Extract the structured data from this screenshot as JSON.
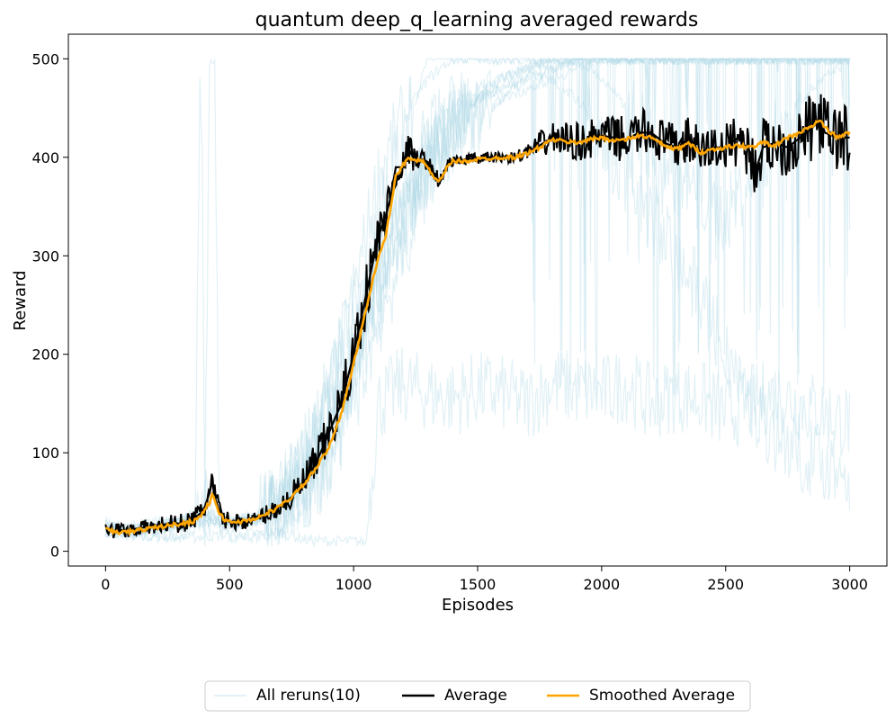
{
  "chart_data": {
    "type": "line",
    "title": "quantum deep_q_learning averaged rewards",
    "xlabel": "Episodes",
    "ylabel": "Reward",
    "xlim": [
      -150,
      3150
    ],
    "ylim": [
      -15,
      525
    ],
    "xticks": [
      0,
      500,
      1000,
      1500,
      2000,
      2500,
      3000
    ],
    "yticks": [
      0,
      100,
      200,
      300,
      400,
      500
    ],
    "grid": false,
    "legend_position": "bottom-center",
    "series": [
      {
        "name": "All reruns(10)",
        "color": "#add8e6",
        "runs": [
          {
            "x": [
              0,
              100,
              200,
              300,
              360,
              380,
              390,
              400,
              420,
              440,
              460,
              500,
              600,
              700,
              800,
              900,
              1000,
              1100,
              1200,
              1300,
              1400,
              1500,
              1600,
              1700,
              1800,
              1900,
              2000,
              2100,
              2200,
              2300,
              2400,
              2500,
              2600,
              2700,
              2800,
              2900,
              3000
            ],
            "y": [
              20,
              15,
              14,
              15,
              16,
              480,
              420,
              30,
              500,
              500,
              20,
              15,
              14,
              18,
              40,
              80,
              180,
              330,
              420,
              500,
              500,
              500,
              500,
              500,
              500,
              500,
              500,
              500,
              500,
              500,
              500,
              500,
              500,
              500,
              500,
              500,
              500
            ]
          },
          {
            "x": [
              0,
              100,
              200,
              300,
              400,
              500,
              600,
              700,
              800,
              900,
              1000,
              1050,
              1100,
              1200,
              1300,
              1400,
              1500,
              1600,
              1700,
              1800,
              1900,
              2000,
              2100,
              2200,
              2300,
              2400,
              2500,
              2600,
              2700,
              2800,
              2900,
              3000
            ],
            "y": [
              22,
              18,
              16,
              14,
              15,
              16,
              18,
              20,
              12,
              10,
              10,
              9,
              150,
              170,
              160,
              155,
              165,
              160,
              150,
              170,
              165,
              160,
              170,
              150,
              160,
              155,
              140,
              150,
              160,
              150,
              140,
              130
            ]
          },
          {
            "x": [
              0,
              100,
              200,
              300,
              400,
              500,
              600,
              700,
              800,
              900,
              1000,
              1100,
              1200,
              1300,
              1400,
              1500,
              1600,
              1700,
              1800,
              1900,
              2000,
              2100,
              2200,
              2300,
              2400,
              2500,
              2600,
              2700,
              2800,
              2900,
              3000
            ],
            "y": [
              25,
              20,
              25,
              30,
              40,
              30,
              35,
              55,
              90,
              160,
              260,
              380,
              440,
              480,
              500,
              500,
              500,
              500,
              490,
              500,
              480,
              450,
              420,
              380,
              360,
              340,
              380,
              420,
              460,
              480,
              500
            ]
          },
          {
            "x": [
              0,
              100,
              200,
              300,
              400,
              500,
              600,
              700,
              800,
              900,
              1000,
              1100,
              1200,
              1300,
              1400,
              1500,
              1600,
              1700,
              1800,
              1900,
              2000,
              2100,
              2200,
              2300,
              2400,
              2500,
              2600,
              2700,
              2800,
              2900,
              3000
            ],
            "y": [
              18,
              16,
              20,
              25,
              30,
              25,
              30,
              50,
              70,
              120,
              200,
              280,
              350,
              400,
              420,
              440,
              460,
              470,
              480,
              490,
              500,
              500,
              500,
              500,
              500,
              500,
              500,
              500,
              500,
              500,
              500
            ]
          },
          {
            "x": [
              0,
              100,
              200,
              300,
              400,
              500,
              600,
              700,
              800,
              900,
              1000,
              1100,
              1200,
              1300,
              1400,
              1500,
              1600,
              1700,
              1800,
              1900,
              2000,
              2100,
              2200,
              2300,
              2400,
              2500,
              2600,
              2700,
              2800,
              2900,
              3000
            ],
            "y": [
              30,
              25,
              30,
              28,
              35,
              30,
              32,
              45,
              60,
              110,
              180,
              250,
              320,
              390,
              430,
              460,
              480,
              490,
              500,
              500,
              500,
              500,
              500,
              500,
              500,
              500,
              500,
              500,
              500,
              500,
              500
            ]
          },
          {
            "x": [
              0,
              100,
              200,
              300,
              400,
              500,
              600,
              700,
              800,
              900,
              1000,
              1100,
              1200,
              1300,
              1400,
              1500,
              1600,
              1700,
              1800,
              1900,
              2000,
              2100,
              2200,
              2300,
              2400,
              2500,
              2600,
              2700,
              2800,
              2900,
              3000
            ],
            "y": [
              20,
              18,
              22,
              25,
              28,
              26,
              30,
              40,
              55,
              90,
              150,
              230,
              300,
              380,
              420,
              440,
              460,
              480,
              490,
              500,
              500,
              500,
              500,
              500,
              500,
              500,
              500,
              500,
              500,
              500,
              500
            ]
          },
          {
            "x": [
              0,
              100,
              200,
              300,
              400,
              500,
              600,
              700,
              800,
              900,
              1000,
              1100,
              1200,
              1300,
              1400,
              1500,
              1600,
              1700,
              1800,
              1900,
              2000,
              2100,
              2200,
              2300,
              2400,
              2500,
              2600,
              2700,
              2800,
              2900,
              3000
            ],
            "y": [
              24,
              22,
              28,
              30,
              45,
              32,
              35,
              60,
              100,
              170,
              240,
              300,
              360,
              420,
              450,
              470,
              480,
              490,
              500,
              500,
              500,
              500,
              500,
              500,
              500,
              500,
              500,
              500,
              500,
              500,
              500
            ]
          },
          {
            "x": [
              0,
              100,
              200,
              300,
              400,
              500,
              600,
              700,
              800,
              900,
              1000,
              1100,
              1200,
              1300,
              1400,
              1500,
              1600,
              1700,
              1800,
              1900,
              2000,
              2100,
              2200,
              2300,
              2400,
              2500,
              2600,
              2700,
              2800,
              2900,
              3000
            ],
            "y": [
              20,
              25,
              24,
              28,
              35,
              28,
              30,
              55,
              85,
              140,
              200,
              260,
              330,
              390,
              430,
              460,
              480,
              490,
              500,
              500,
              500,
              500,
              500,
              500,
              500,
              500,
              500,
              500,
              500,
              500,
              500
            ]
          },
          {
            "x": [
              0,
              100,
              200,
              300,
              400,
              500,
              600,
              700,
              800,
              900,
              1000,
              1100,
              1200,
              1300,
              1400,
              1500,
              1600,
              1700,
              1800,
              1900,
              2000,
              2100,
              2200,
              2300,
              2400,
              2500,
              2600,
              2700,
              2800,
              2900,
              3000
            ],
            "y": [
              26,
              20,
              26,
              32,
              40,
              30,
              33,
              50,
              80,
              150,
              220,
              290,
              360,
              410,
              440,
              460,
              470,
              480,
              490,
              500,
              500,
              500,
              500,
              500,
              500,
              500,
              500,
              500,
              500,
              500,
              500
            ]
          },
          {
            "x": [
              0,
              100,
              200,
              300,
              400,
              500,
              600,
              700,
              800,
              900,
              1000,
              1100,
              1200,
              1300,
              1400,
              1500,
              1600,
              1700,
              1800,
              1900,
              2000,
              2100,
              2200,
              2300,
              2400,
              2500,
              2600,
              2700,
              2800,
              2900,
              3000
            ],
            "y": [
              22,
              20,
              24,
              26,
              32,
              28,
              30,
              45,
              70,
              120,
              190,
              270,
              340,
              400,
              440,
              460,
              470,
              480,
              480,
              460,
              420,
              380,
              340,
              300,
              260,
              200,
              150,
              120,
              100,
              90,
              80
            ]
          }
        ]
      },
      {
        "name": "Average",
        "color": "#000000",
        "x": [
          0,
          25,
          50,
          75,
          100,
          150,
          200,
          250,
          300,
          350,
          380,
          400,
          420,
          430,
          440,
          460,
          480,
          500,
          550,
          600,
          650,
          700,
          750,
          800,
          850,
          900,
          950,
          1000,
          1050,
          1100,
          1130,
          1150,
          1170,
          1200,
          1220,
          1240,
          1260,
          1280,
          1300,
          1320,
          1340,
          1350,
          1360,
          1380,
          1400,
          1450,
          1500,
          1550,
          1600,
          1650,
          1700,
          1750,
          1800,
          1850,
          1900,
          1950,
          2000,
          2050,
          2100,
          2150,
          2200,
          2250,
          2300,
          2350,
          2400,
          2450,
          2500,
          2550,
          2600,
          2620,
          2650,
          2700,
          2750,
          2800,
          2850,
          2880,
          2900,
          2950,
          3000
        ],
        "y": [
          25,
          20,
          22,
          21,
          22,
          24,
          25,
          28,
          28,
          32,
          38,
          45,
          60,
          72,
          55,
          40,
          33,
          30,
          30,
          32,
          38,
          45,
          55,
          70,
          90,
          120,
          150,
          200,
          260,
          320,
          340,
          360,
          390,
          390,
          410,
          400,
          395,
          398,
          395,
          385,
          378,
          376,
          380,
          395,
          395,
          398,
          398,
          400,
          400,
          400,
          405,
          412,
          420,
          418,
          415,
          418,
          422,
          420,
          418,
          425,
          425,
          415,
          410,
          418,
          405,
          410,
          410,
          420,
          405,
          385,
          410,
          415,
          410,
          420,
          430,
          440,
          425,
          420,
          420
        ],
        "band": [
          8,
          8,
          8,
          8,
          8,
          8,
          8,
          10,
          10,
          10,
          12,
          14,
          16,
          18,
          14,
          12,
          10,
          8,
          8,
          8,
          10,
          12,
          14,
          20,
          22,
          24,
          26,
          30,
          32,
          30,
          28,
          26,
          22,
          18,
          16,
          14,
          12,
          10,
          8,
          8,
          8,
          8,
          8,
          8,
          6,
          6,
          6,
          6,
          6,
          6,
          8,
          14,
          16,
          18,
          20,
          20,
          20,
          22,
          24,
          24,
          24,
          24,
          24,
          24,
          24,
          24,
          24,
          28,
          28,
          28,
          30,
          30,
          32,
          34,
          36,
          36,
          36,
          36,
          36
        ]
      },
      {
        "name": "Smoothed Average",
        "color": "#ffa500",
        "x": [
          0,
          50,
          100,
          150,
          200,
          250,
          300,
          350,
          380,
          400,
          420,
          430,
          440,
          460,
          480,
          500,
          550,
          600,
          650,
          700,
          750,
          800,
          850,
          900,
          950,
          1000,
          1050,
          1100,
          1130,
          1150,
          1170,
          1200,
          1220,
          1250,
          1280,
          1300,
          1320,
          1340,
          1360,
          1380,
          1400,
          1450,
          1500,
          1550,
          1600,
          1650,
          1700,
          1750,
          1800,
          1850,
          1900,
          1950,
          2000,
          2050,
          2100,
          2150,
          2200,
          2250,
          2300,
          2350,
          2400,
          2450,
          2500,
          2550,
          2600,
          2650,
          2700,
          2750,
          2800,
          2850,
          2880,
          2900,
          2950,
          3000
        ],
        "y": [
          22,
          19,
          20,
          22,
          24,
          26,
          28,
          30,
          35,
          42,
          50,
          56,
          52,
          38,
          32,
          30,
          30,
          33,
          38,
          45,
          55,
          68,
          85,
          105,
          140,
          190,
          245,
          300,
          320,
          350,
          380,
          392,
          400,
          398,
          395,
          390,
          380,
          375,
          380,
          392,
          396,
          396,
          398,
          399,
          400,
          400,
          404,
          410,
          418,
          416,
          415,
          418,
          420,
          417,
          418,
          422,
          420,
          412,
          408,
          414,
          405,
          408,
          410,
          412,
          410,
          415,
          412,
          420,
          425,
          432,
          438,
          430,
          420,
          425
        ]
      }
    ]
  }
}
